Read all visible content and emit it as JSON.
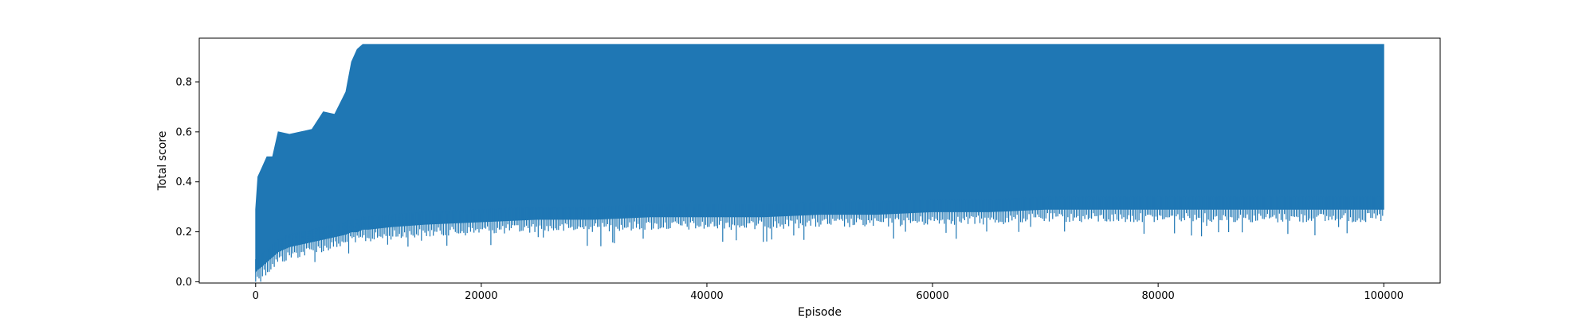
{
  "chart_data": {
    "type": "line",
    "title": "",
    "xlabel": "Episode",
    "ylabel": "Total score",
    "xlim": [
      -5000,
      105000
    ],
    "ylim": [
      -0.005,
      0.975
    ],
    "xticks": [
      0,
      20000,
      40000,
      60000,
      80000,
      100000
    ],
    "xtick_labels": [
      "0",
      "20000",
      "40000",
      "60000",
      "80000",
      "100000"
    ],
    "yticks": [
      0.0,
      0.2,
      0.4,
      0.6,
      0.8
    ],
    "ytick_labels": [
      "0.0",
      "0.2",
      "0.4",
      "0.6",
      "0.8"
    ],
    "grid": false,
    "legend": "none",
    "color": "#1f77b4",
    "series": [
      {
        "envelope_x": [
          0,
          200,
          500,
          1000,
          1500,
          2000,
          3000,
          4000,
          5000,
          6000,
          7000,
          8000,
          8500,
          9000,
          9500,
          10000,
          12000,
          15000,
          20000,
          25000,
          30000,
          35000,
          40000,
          45000,
          50000,
          55000,
          60000,
          65000,
          70000,
          75000,
          80000,
          85000,
          90000,
          95000,
          100000
        ],
        "upper": [
          0.29,
          0.42,
          0.45,
          0.5,
          0.5,
          0.6,
          0.59,
          0.6,
          0.61,
          0.68,
          0.67,
          0.76,
          0.88,
          0.93,
          0.95,
          0.95,
          0.95,
          0.95,
          0.95,
          0.95,
          0.95,
          0.95,
          0.95,
          0.95,
          0.95,
          0.95,
          0.95,
          0.95,
          0.95,
          0.95,
          0.95,
          0.95,
          0.95,
          0.95,
          0.95
        ],
        "lower": [
          0.04,
          0.05,
          0.06,
          0.08,
          0.1,
          0.12,
          0.14,
          0.15,
          0.16,
          0.17,
          0.18,
          0.19,
          0.2,
          0.2,
          0.21,
          0.21,
          0.22,
          0.23,
          0.24,
          0.25,
          0.25,
          0.26,
          0.26,
          0.26,
          0.27,
          0.27,
          0.28,
          0.28,
          0.29,
          0.29,
          0.29,
          0.29,
          0.29,
          0.29,
          0.29
        ]
      }
    ]
  }
}
